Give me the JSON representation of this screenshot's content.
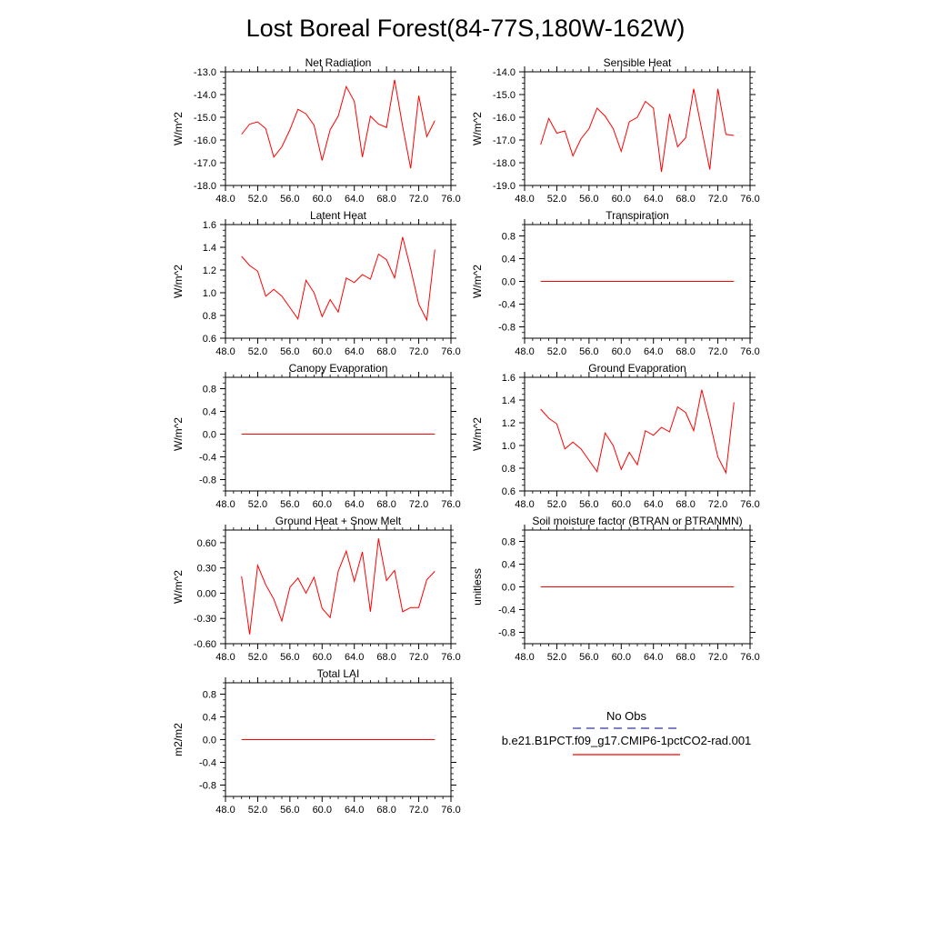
{
  "title": "Lost Boreal Forest(84-77S,180W-162W)",
  "colors": {
    "model_line": "#ff0000",
    "obs_line": "#3333aa",
    "axis": "#000000"
  },
  "legend": {
    "obs_label": "No Obs",
    "model_label": "b.e21.B1PCT.f09_g17.CMIP6-1pctCO2-rad.001"
  },
  "chart_data": [
    {
      "type": "line",
      "title": "Net Radiation",
      "ylabel": "W/m^2",
      "xlim": [
        48,
        76
      ],
      "ylim": [
        -18,
        -13
      ],
      "yticks": [
        -18,
        -17,
        -16,
        -15,
        -14,
        -13
      ],
      "ytick_labels": [
        "-18.0",
        "-17.0",
        "-16.0",
        "-15.0",
        "-14.0",
        "-13.0"
      ],
      "xticks": [
        48,
        52,
        56,
        60,
        64,
        68,
        72,
        76
      ],
      "xtick_labels": [
        "48.0",
        "52.0",
        "56.0",
        "60.0",
        "64.0",
        "68.0",
        "72.0",
        "76.0"
      ],
      "x": [
        50,
        51,
        52,
        53,
        54,
        55,
        56,
        57,
        58,
        59,
        60,
        61,
        62,
        63,
        64,
        65,
        66,
        67,
        68,
        69,
        70,
        71,
        72,
        73,
        74
      ],
      "series": [
        {
          "values": [
            -15.75,
            -15.3,
            -15.2,
            -15.5,
            -16.75,
            -16.3,
            -15.55,
            -14.65,
            -14.85,
            -15.35,
            -16.9,
            -15.55,
            -14.95,
            -13.65,
            -14.3,
            -16.75,
            -14.95,
            -15.3,
            -15.45,
            -13.35,
            -15.4,
            -17.25,
            -14.05,
            -15.85,
            -15.15
          ]
        }
      ]
    },
    {
      "type": "line",
      "title": "Sensible Heat",
      "ylabel": "W/m^2",
      "xlim": [
        48,
        76
      ],
      "ylim": [
        -19,
        -14
      ],
      "yticks": [
        -19,
        -18,
        -17,
        -16,
        -15,
        -14
      ],
      "ytick_labels": [
        "-19.0",
        "-18.0",
        "-17.0",
        "-16.0",
        "-15.0",
        "-14.0"
      ],
      "xticks": [
        48,
        52,
        56,
        60,
        64,
        68,
        72,
        76
      ],
      "xtick_labels": [
        "48.0",
        "52.0",
        "56.0",
        "60.0",
        "64.0",
        "68.0",
        "72.0",
        "76.0"
      ],
      "x": [
        50,
        51,
        52,
        53,
        54,
        55,
        56,
        57,
        58,
        59,
        60,
        61,
        62,
        63,
        64,
        65,
        66,
        67,
        68,
        69,
        70,
        71,
        72,
        73,
        74
      ],
      "series": [
        {
          "values": [
            -17.2,
            -16.05,
            -16.7,
            -16.6,
            -17.7,
            -16.95,
            -16.5,
            -15.6,
            -15.95,
            -16.5,
            -17.5,
            -16.2,
            -16.0,
            -15.3,
            -15.6,
            -18.4,
            -15.85,
            -17.3,
            -16.9,
            -14.75,
            -16.55,
            -18.3,
            -14.75,
            -16.75,
            -16.8
          ]
        }
      ]
    },
    {
      "type": "line",
      "title": "Latent Heat",
      "ylabel": "W/m^2",
      "xlim": [
        48,
        76
      ],
      "ylim": [
        0.6,
        1.6
      ],
      "yticks": [
        0.6,
        0.8,
        1.0,
        1.2,
        1.4,
        1.6
      ],
      "ytick_labels": [
        "0.6",
        "0.8",
        "1.0",
        "1.2",
        "1.4",
        "1.6"
      ],
      "xticks": [
        48,
        52,
        56,
        60,
        64,
        68,
        72,
        76
      ],
      "xtick_labels": [
        "48.0",
        "52.0",
        "56.0",
        "60.0",
        "64.0",
        "68.0",
        "72.0",
        "76.0"
      ],
      "x": [
        50,
        51,
        52,
        53,
        54,
        55,
        56,
        57,
        58,
        59,
        60,
        61,
        62,
        63,
        64,
        65,
        66,
        67,
        68,
        69,
        70,
        71,
        72,
        73,
        74
      ],
      "series": [
        {
          "values": [
            1.32,
            1.24,
            1.19,
            0.97,
            1.03,
            0.97,
            0.87,
            0.77,
            1.11,
            1.0,
            0.79,
            0.94,
            0.83,
            1.13,
            1.09,
            1.16,
            1.12,
            1.34,
            1.29,
            1.13,
            1.49,
            1.21,
            0.9,
            0.76,
            1.38
          ]
        }
      ]
    },
    {
      "type": "line",
      "title": "Transpiration",
      "ylabel": "W/m^2",
      "xlim": [
        48,
        76
      ],
      "ylim": [
        -1.0,
        1.0
      ],
      "yticks": [
        -0.8,
        -0.4,
        0.0,
        0.4,
        0.8
      ],
      "ytick_labels": [
        "-0.8",
        "-0.4",
        "0.0",
        "0.4",
        "0.8"
      ],
      "xticks": [
        48,
        52,
        56,
        60,
        64,
        68,
        72,
        76
      ],
      "xtick_labels": [
        "48.0",
        "52.0",
        "56.0",
        "60.0",
        "64.0",
        "68.0",
        "72.0",
        "76.0"
      ],
      "x": [
        50,
        51,
        52,
        53,
        54,
        55,
        56,
        57,
        58,
        59,
        60,
        61,
        62,
        63,
        64,
        65,
        66,
        67,
        68,
        69,
        70,
        71,
        72,
        73,
        74
      ],
      "series": [
        {
          "values": [
            0,
            0,
            0,
            0,
            0,
            0,
            0,
            0,
            0,
            0,
            0,
            0,
            0,
            0,
            0,
            0,
            0,
            0,
            0,
            0,
            0,
            0,
            0,
            0,
            0
          ]
        }
      ]
    },
    {
      "type": "line",
      "title": "Canopy Evaporation",
      "ylabel": "W/m^2",
      "xlim": [
        48,
        76
      ],
      "ylim": [
        -1.0,
        1.0
      ],
      "yticks": [
        -0.8,
        -0.4,
        0.0,
        0.4,
        0.8
      ],
      "ytick_labels": [
        "-0.8",
        "-0.4",
        "0.0",
        "0.4",
        "0.8"
      ],
      "xticks": [
        48,
        52,
        56,
        60,
        64,
        68,
        72,
        76
      ],
      "xtick_labels": [
        "48.0",
        "52.0",
        "56.0",
        "60.0",
        "64.0",
        "68.0",
        "72.0",
        "76.0"
      ],
      "x": [
        50,
        51,
        52,
        53,
        54,
        55,
        56,
        57,
        58,
        59,
        60,
        61,
        62,
        63,
        64,
        65,
        66,
        67,
        68,
        69,
        70,
        71,
        72,
        73,
        74
      ],
      "series": [
        {
          "values": [
            0,
            0,
            0,
            0,
            0,
            0,
            0,
            0,
            0,
            0,
            0,
            0,
            0,
            0,
            0,
            0,
            0,
            0,
            0,
            0,
            0,
            0,
            0,
            0,
            0
          ]
        }
      ]
    },
    {
      "type": "line",
      "title": "Ground Evaporation",
      "ylabel": "W/m^2",
      "xlim": [
        48,
        76
      ],
      "ylim": [
        0.6,
        1.6
      ],
      "yticks": [
        0.6,
        0.8,
        1.0,
        1.2,
        1.4,
        1.6
      ],
      "ytick_labels": [
        "0.6",
        "0.8",
        "1.0",
        "1.2",
        "1.4",
        "1.6"
      ],
      "xticks": [
        48,
        52,
        56,
        60,
        64,
        68,
        72,
        76
      ],
      "xtick_labels": [
        "48.0",
        "52.0",
        "56.0",
        "60.0",
        "64.0",
        "68.0",
        "72.0",
        "76.0"
      ],
      "x": [
        50,
        51,
        52,
        53,
        54,
        55,
        56,
        57,
        58,
        59,
        60,
        61,
        62,
        63,
        64,
        65,
        66,
        67,
        68,
        69,
        70,
        71,
        72,
        73,
        74
      ],
      "series": [
        {
          "values": [
            1.32,
            1.24,
            1.19,
            0.97,
            1.03,
            0.97,
            0.87,
            0.77,
            1.11,
            1.0,
            0.79,
            0.94,
            0.83,
            1.13,
            1.09,
            1.16,
            1.12,
            1.34,
            1.29,
            1.13,
            1.49,
            1.21,
            0.9,
            0.76,
            1.38
          ]
        }
      ]
    },
    {
      "type": "line",
      "title": "Ground Heat + Snow Melt",
      "ylabel": "W/m^2",
      "xlim": [
        48,
        76
      ],
      "ylim": [
        -0.6,
        0.75
      ],
      "yticks": [
        -0.6,
        -0.3,
        0.0,
        0.3,
        0.6
      ],
      "ytick_labels": [
        "-0.60",
        "-0.30",
        "0.00",
        "0.30",
        "0.60"
      ],
      "xticks": [
        48,
        52,
        56,
        60,
        64,
        68,
        72,
        76
      ],
      "xtick_labels": [
        "48.0",
        "52.0",
        "56.0",
        "60.0",
        "64.0",
        "68.0",
        "72.0",
        "76.0"
      ],
      "x": [
        50,
        51,
        52,
        53,
        54,
        55,
        56,
        57,
        58,
        59,
        60,
        61,
        62,
        63,
        64,
        65,
        66,
        67,
        68,
        69,
        70,
        71,
        72,
        73,
        74
      ],
      "series": [
        {
          "values": [
            0.2,
            -0.49,
            0.33,
            0.1,
            -0.07,
            -0.33,
            0.07,
            0.18,
            0.0,
            0.19,
            -0.18,
            -0.29,
            0.26,
            0.5,
            0.14,
            0.49,
            -0.22,
            0.65,
            0.15,
            0.27,
            -0.22,
            -0.17,
            -0.17,
            0.16,
            0.26
          ]
        }
      ]
    },
    {
      "type": "line",
      "title": "Soil moisture factor (BTRAN or BTRANMN)",
      "ylabel": "unitless",
      "xlim": [
        48,
        76
      ],
      "ylim": [
        -1.0,
        1.0
      ],
      "yticks": [
        -0.8,
        -0.4,
        0.0,
        0.4,
        0.8
      ],
      "ytick_labels": [
        "-0.8",
        "-0.4",
        "0.0",
        "0.4",
        "0.8"
      ],
      "xticks": [
        48,
        52,
        56,
        60,
        64,
        68,
        72,
        76
      ],
      "xtick_labels": [
        "48.0",
        "52.0",
        "56.0",
        "60.0",
        "64.0",
        "68.0",
        "72.0",
        "76.0"
      ],
      "x": [
        50,
        51,
        52,
        53,
        54,
        55,
        56,
        57,
        58,
        59,
        60,
        61,
        62,
        63,
        64,
        65,
        66,
        67,
        68,
        69,
        70,
        71,
        72,
        73,
        74
      ],
      "series": [
        {
          "values": [
            0,
            0,
            0,
            0,
            0,
            0,
            0,
            0,
            0,
            0,
            0,
            0,
            0,
            0,
            0,
            0,
            0,
            0,
            0,
            0,
            0,
            0,
            0,
            0,
            0
          ]
        }
      ]
    },
    {
      "type": "line",
      "title": "Total LAI",
      "ylabel": "m2/m2",
      "xlim": [
        48,
        76
      ],
      "ylim": [
        -1.0,
        1.0
      ],
      "yticks": [
        -0.8,
        -0.4,
        0.0,
        0.4,
        0.8
      ],
      "ytick_labels": [
        "-0.8",
        "-0.4",
        "0.0",
        "0.4",
        "0.8"
      ],
      "xticks": [
        48,
        52,
        56,
        60,
        64,
        68,
        72,
        76
      ],
      "xtick_labels": [
        "48.0",
        "52.0",
        "56.0",
        "60.0",
        "64.0",
        "68.0",
        "72.0",
        "76.0"
      ],
      "x": [
        50,
        51,
        52,
        53,
        54,
        55,
        56,
        57,
        58,
        59,
        60,
        61,
        62,
        63,
        64,
        65,
        66,
        67,
        68,
        69,
        70,
        71,
        72,
        73,
        74
      ],
      "series": [
        {
          "values": [
            0,
            0,
            0,
            0,
            0,
            0,
            0,
            0,
            0,
            0,
            0,
            0,
            0,
            0,
            0,
            0,
            0,
            0,
            0,
            0,
            0,
            0,
            0,
            0,
            0
          ]
        }
      ]
    }
  ]
}
